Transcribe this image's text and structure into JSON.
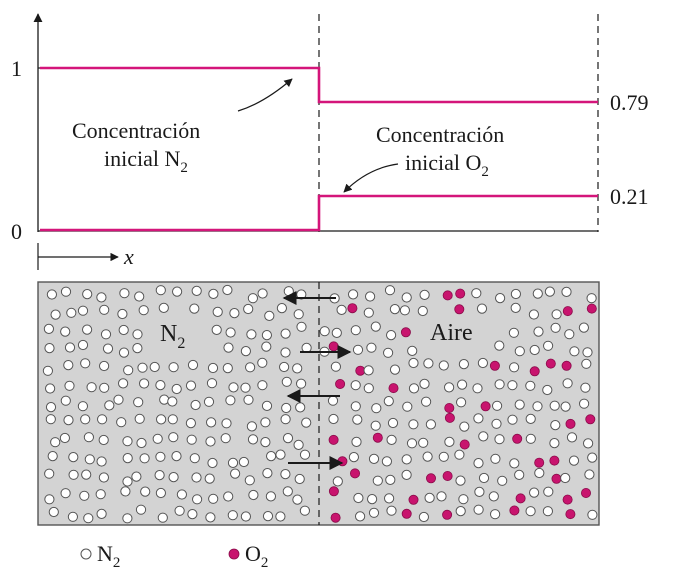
{
  "graph": {
    "y_tick_top": "1",
    "y_tick_bottom": "0",
    "x_axis_label": "x",
    "value_right_top": "0.79",
    "value_right_bottom": "0.21",
    "n2_label": {
      "line1": "Concentración",
      "line2_prefix": "inicial N",
      "line2_sub": "2"
    },
    "o2_label": {
      "line1": "Concentración",
      "line2_prefix": "inicial O",
      "line2_sub": "2"
    },
    "colors": {
      "o2": "#c8146e",
      "curve": "#d4157a",
      "box": "#d3d3d3"
    }
  },
  "box": {
    "left_label_prefix": "N",
    "left_label_sub": "2",
    "right_label": "Aire"
  },
  "legend": {
    "n2_prefix": "N",
    "n2_sub": "2",
    "o2_prefix": "O",
    "o2_sub": "2"
  }
}
